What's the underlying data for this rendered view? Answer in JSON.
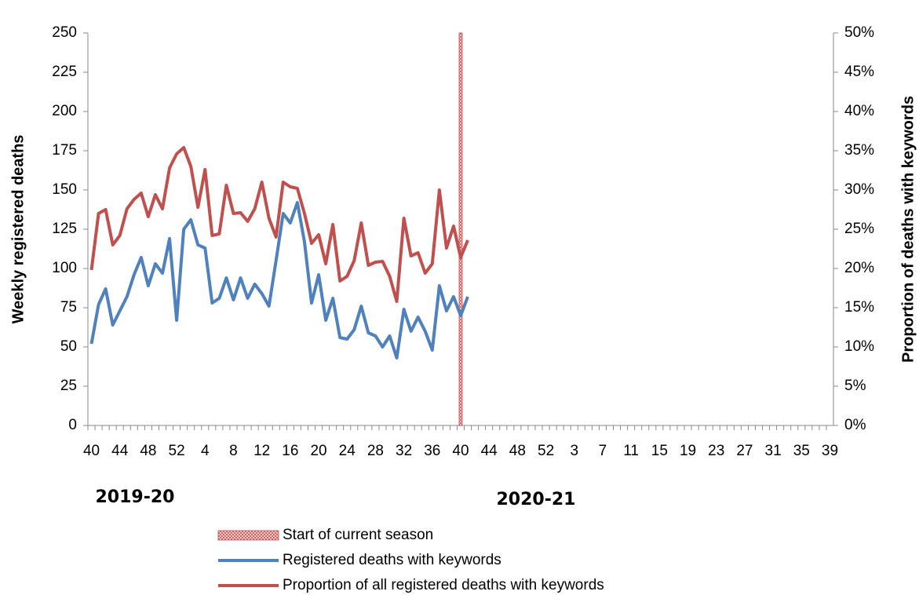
{
  "chart_data": {
    "type": "line",
    "y_label": "Weekly registered deaths",
    "y2_label": "Proportion of deaths with keywords",
    "annotations": [
      "2019-20",
      "2020-21"
    ],
    "categories": [
      "40",
      null,
      null,
      null,
      "44",
      null,
      null,
      null,
      "48",
      null,
      null,
      null,
      "52",
      null,
      null,
      null,
      "4",
      null,
      null,
      null,
      "8",
      null,
      null,
      null,
      "12",
      null,
      null,
      null,
      "16",
      null,
      null,
      null,
      "20",
      null,
      null,
      null,
      "24",
      null,
      null,
      null,
      "28",
      null,
      null,
      null,
      "32",
      null,
      null,
      null,
      "36",
      null,
      null,
      null,
      "40",
      null,
      null,
      null,
      "44",
      null,
      null,
      null,
      "48",
      null,
      null,
      null,
      "52",
      null,
      null,
      null,
      "3",
      null,
      null,
      null,
      "7",
      null,
      null,
      null,
      "11",
      null,
      null,
      null,
      "15",
      null,
      null,
      null,
      "19",
      null,
      null,
      null,
      "23",
      null,
      null,
      null,
      "27",
      null,
      null,
      null,
      "31",
      null,
      null,
      null,
      "35",
      null,
      null,
      null,
      "39"
    ],
    "season_start": {
      "name": "Start of current season",
      "category_index": 52,
      "color": "#c0504d"
    },
    "series": [
      {
        "name": "Registered deaths with keywords",
        "color": "#4f81bd",
        "values": [
          52,
          77,
          87,
          64,
          73,
          82,
          96,
          107,
          89,
          103,
          97,
          119,
          67,
          125,
          131,
          115,
          113,
          78,
          81,
          94,
          80,
          94,
          81,
          90,
          84,
          76,
          105,
          135,
          129,
          142,
          117,
          78,
          96,
          67,
          81,
          56,
          55,
          61,
          76,
          59,
          57,
          50,
          57,
          43,
          74,
          60,
          69,
          60,
          48,
          89,
          73,
          82,
          70,
          82,
          null,
          null,
          null,
          null,
          null,
          null,
          null,
          null,
          null,
          null,
          null,
          null,
          null,
          null,
          null,
          null,
          null,
          null,
          null,
          null,
          null,
          null,
          null,
          null,
          null,
          null,
          null,
          null,
          null,
          null,
          null,
          null,
          null,
          null,
          null,
          null,
          null,
          null,
          null,
          null,
          null,
          null,
          null,
          null,
          null,
          null,
          null,
          null,
          null,
          null,
          null
        ]
      },
      {
        "name": "Proportion of all registered deaths with keywords",
        "color": "#c0504d",
        "axis": "y2",
        "values": [
          19.8,
          27,
          27.5,
          23,
          24.2,
          27.6,
          28.8,
          29.6,
          26.6,
          29.4,
          27.6,
          32.8,
          34.6,
          35.4,
          33,
          27.8,
          32.6,
          24.2,
          24.4,
          30.6,
          27,
          27.1,
          26,
          27.6,
          31,
          26.4,
          24,
          31,
          30.4,
          30.2,
          27,
          23.2,
          24.3,
          20.6,
          25.6,
          18.4,
          19,
          21,
          25.8,
          20.4,
          20.8,
          20.9,
          19,
          15.8,
          26.4,
          21.6,
          22,
          19.4,
          20.6,
          30,
          22.6,
          25.4,
          21.4,
          23.6,
          null,
          null,
          null,
          null,
          null,
          null,
          null,
          null,
          null,
          null,
          null,
          null,
          null,
          null,
          null,
          null,
          null,
          null,
          null,
          null,
          null,
          null,
          null,
          null,
          null,
          null,
          null,
          null,
          null,
          null,
          null,
          null,
          null,
          null,
          null,
          null,
          null,
          null,
          null,
          null,
          null,
          null,
          null,
          null,
          null,
          null,
          null,
          null,
          null,
          null,
          null
        ]
      }
    ],
    "ylim": [
      0,
      250
    ],
    "yticks": [
      0,
      25,
      50,
      75,
      100,
      125,
      150,
      175,
      200,
      225,
      250
    ],
    "y2lim": [
      0,
      50
    ],
    "y2ticks": [
      {
        "value": 0,
        "label": "0%"
      },
      {
        "value": 5,
        "label": "5%"
      },
      {
        "value": 10,
        "label": "10%"
      },
      {
        "value": 15,
        "label": "15%"
      },
      {
        "value": 20,
        "label": "20%"
      },
      {
        "value": 25,
        "label": "25%"
      },
      {
        "value": 30,
        "label": "30%"
      },
      {
        "value": 35,
        "label": "35%"
      },
      {
        "value": 40,
        "label": "40%"
      },
      {
        "value": 45,
        "label": "45%"
      },
      {
        "value": 50,
        "label": "50%"
      }
    ]
  }
}
